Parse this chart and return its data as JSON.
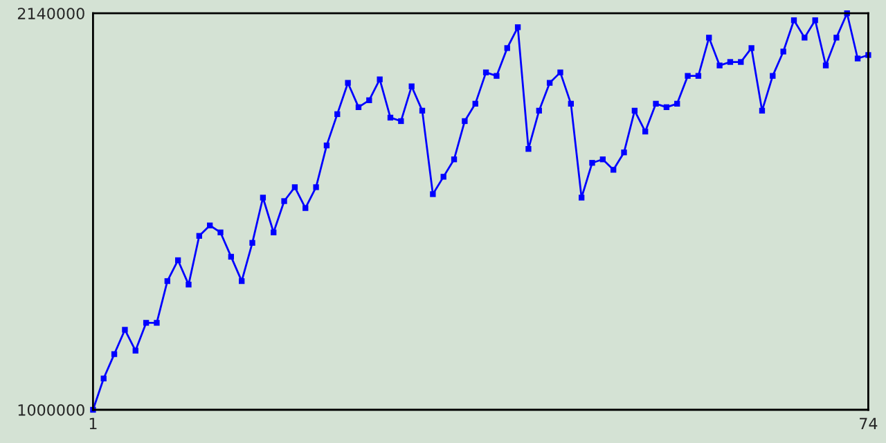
{
  "chart_data": {
    "type": "line",
    "x": [
      1,
      2,
      3,
      4,
      5,
      6,
      7,
      8,
      9,
      10,
      11,
      12,
      13,
      14,
      15,
      16,
      17,
      18,
      19,
      20,
      21,
      22,
      23,
      24,
      25,
      26,
      27,
      28,
      29,
      30,
      31,
      32,
      33,
      34,
      35,
      36,
      37,
      38,
      39,
      40,
      41,
      42,
      43,
      44,
      45,
      46,
      47,
      48,
      49,
      50,
      51,
      52,
      53,
      54,
      55,
      56,
      57,
      58,
      59,
      60,
      61,
      62,
      63,
      64,
      65,
      66,
      67,
      68,
      69,
      70,
      71,
      72,
      73,
      74
    ],
    "series": [
      {
        "color": "#0000ff",
        "values": [
          1000000,
          1090000,
          1160000,
          1230000,
          1170000,
          1250000,
          1250000,
          1370000,
          1430000,
          1360000,
          1500000,
          1530000,
          1510000,
          1440000,
          1370000,
          1480000,
          1610000,
          1510000,
          1600000,
          1640000,
          1580000,
          1640000,
          1760000,
          1850000,
          1940000,
          1870000,
          1890000,
          1950000,
          1840000,
          1830000,
          1930000,
          1860000,
          1620000,
          1670000,
          1720000,
          1830000,
          1880000,
          1970000,
          1960000,
          2040000,
          2100000,
          1750000,
          1860000,
          1940000,
          1970000,
          1880000,
          1610000,
          1710000,
          1720000,
          1690000,
          1740000,
          1860000,
          1800000,
          1880000,
          1870000,
          1880000,
          1960000,
          1960000,
          2070000,
          1990000,
          2000000,
          2000000,
          2040000,
          1860000,
          1960000,
          2030000,
          2120000,
          2070000,
          2120000,
          1990000,
          2070000,
          2140000,
          2010000,
          2020000
        ]
      }
    ],
    "xlim": [
      1,
      74
    ],
    "xticks": [
      1,
      74
    ],
    "ylim": [
      1000000,
      2140000
    ],
    "yticks": [
      1000000,
      2140000
    ],
    "marker": "square",
    "line_style": "solid"
  }
}
